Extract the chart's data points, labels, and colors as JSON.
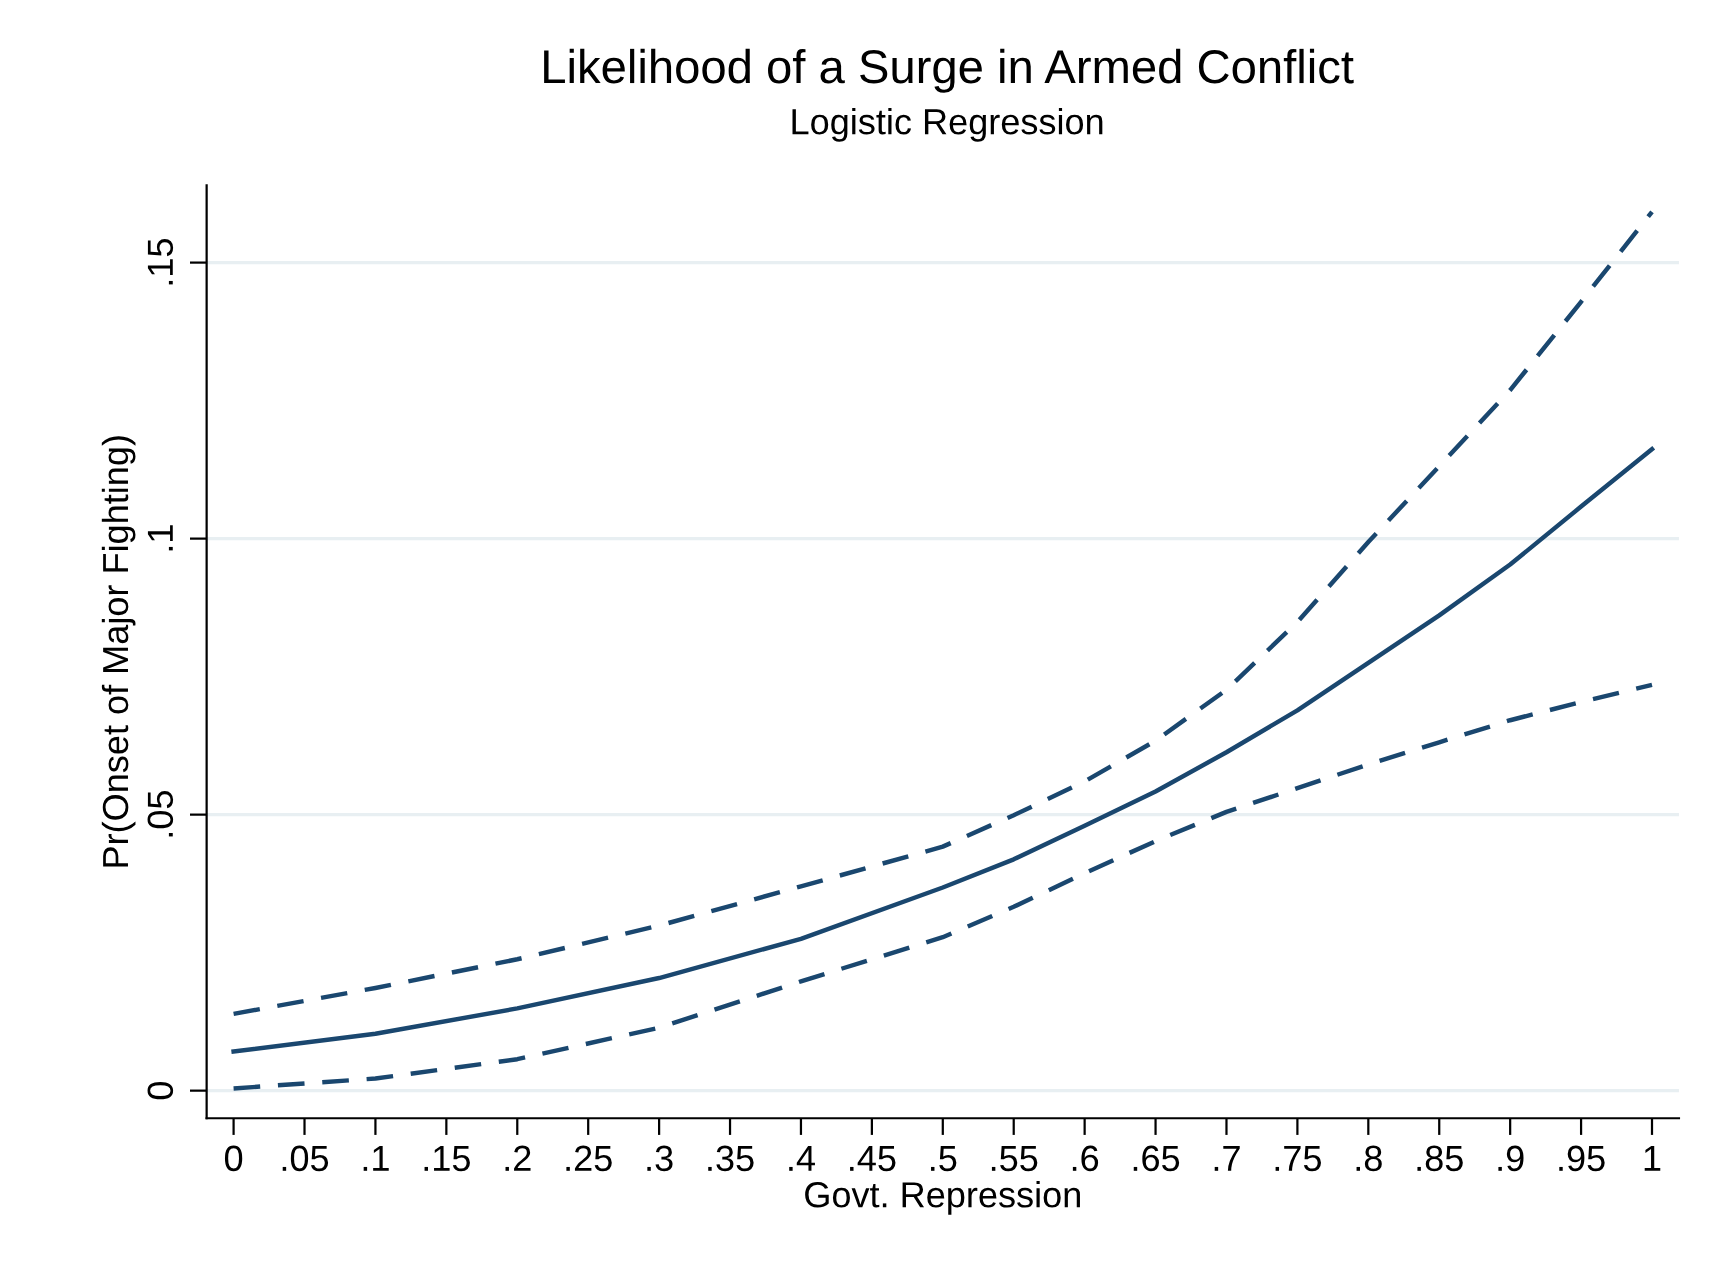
{
  "chart_data": {
    "type": "line",
    "title": "Likelihood of a Surge in Armed Conflict",
    "subtitle": "Logistic Regression",
    "xlabel": "Govt. Repression",
    "ylabel": "Pr(Onset of Major Fighting)",
    "x": [
      0,
      0.1,
      0.2,
      0.3,
      0.4,
      0.5,
      0.55,
      0.6,
      0.65,
      0.7,
      0.75,
      0.8,
      0.85,
      0.9,
      0.95,
      1
    ],
    "series": [
      {
        "color": "#1a476f",
        "line_style": "solid",
        "values": [
          0.0071,
          0.0103,
          0.0149,
          0.0204,
          0.0275,
          0.0368,
          0.0419,
          0.048,
          0.0542,
          0.0613,
          0.0689,
          0.0775,
          0.0861,
          0.0953,
          0.1058,
          0.1162
        ]
      },
      {
        "color": "#1a476f",
        "line_style": "dashed",
        "values": [
          0.0139,
          0.0186,
          0.0238,
          0.0299,
          0.037,
          0.0442,
          0.0499,
          0.056,
          0.0634,
          0.0726,
          0.0849,
          0.0994,
          0.1131,
          0.1269,
          0.1429,
          0.1592
        ]
      },
      {
        "color": "#1a476f",
        "line_style": "dashed",
        "values": [
          0.0004,
          0.0022,
          0.0057,
          0.0114,
          0.0198,
          0.0278,
          0.0333,
          0.0394,
          0.0452,
          0.0505,
          0.0548,
          0.0591,
          0.0631,
          0.0671,
          0.0704,
          0.0735
        ]
      }
    ],
    "xlim": [
      -0.019,
      1.019
    ],
    "ylim": [
      -0.005,
      0.164
    ],
    "xticks": [
      0,
      {
        "value": 0.05,
        "label": ".05"
      },
      {
        "value": 0.1,
        "label": ".1"
      },
      {
        "value": 0.15,
        "label": ".15"
      },
      {
        "value": 0.2,
        "label": ".2"
      },
      {
        "value": 0.25,
        "label": ".25"
      },
      {
        "value": 0.3,
        "label": ".3"
      },
      {
        "value": 0.35,
        "label": ".35"
      },
      {
        "value": 0.4,
        "label": ".4"
      },
      {
        "value": 0.45,
        "label": ".45"
      },
      {
        "value": 0.5,
        "label": ".5"
      },
      {
        "value": 0.55,
        "label": ".55"
      },
      {
        "value": 0.6,
        "label": ".6"
      },
      {
        "value": 0.65,
        "label": ".65"
      },
      {
        "value": 0.7,
        "label": ".7"
      },
      {
        "value": 0.75,
        "label": ".75"
      },
      {
        "value": 0.8,
        "label": ".8"
      },
      {
        "value": 0.85,
        "label": ".85"
      },
      {
        "value": 0.9,
        "label": ".9"
      },
      {
        "value": 0.95,
        "label": ".95"
      },
      1
    ],
    "yticks": [
      0,
      {
        "value": 0.05,
        "label": ".05"
      },
      {
        "value": 0.1,
        "label": ".1"
      },
      {
        "value": 0.15,
        "label": ".15"
      }
    ],
    "grid": "y",
    "marker": "none",
    "legend": false
  }
}
